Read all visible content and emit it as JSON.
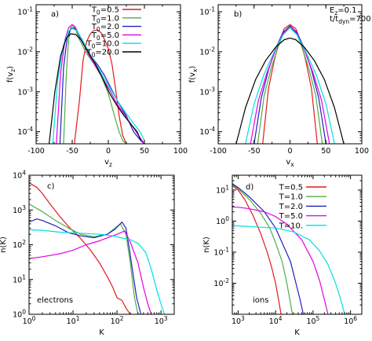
{
  "chart_data": [
    {
      "panel": "a)",
      "type": "line",
      "xlabel": "v_z",
      "ylabel": "f(v_z)",
      "xscale": "linear",
      "yscale": "log",
      "xlim": [
        -100,
        100
      ],
      "ylim": [
        5e-05,
        0.15
      ],
      "xticks": [
        -100,
        -50,
        0,
        50,
        100
      ],
      "xtick_labels": [
        "-100",
        "-50",
        "0",
        "50",
        "100"
      ],
      "yticks": [
        0.0001,
        0.001,
        0.01,
        0.1
      ],
      "ytick_labels": [
        "10-4",
        "10-3",
        "10-2",
        "10-1"
      ],
      "legend_position": "top-right",
      "series": [
        {
          "name": "T0=0.5",
          "color": "#e41a1c",
          "x": [
            -47,
            -40,
            -35,
            -30,
            -25,
            -20,
            -15,
            -10,
            -5,
            0,
            5,
            10,
            15,
            20,
            25
          ],
          "y": [
            5e-05,
            0.0006,
            0.006,
            0.018,
            0.028,
            0.034,
            0.035,
            0.03,
            0.02,
            0.012,
            0.005,
            0.0012,
            0.00025,
            8e-05,
            5e-05
          ]
        },
        {
          "name": "T0=1.0",
          "color": "#4daf4a",
          "x": [
            -62,
            -58,
            -55,
            -52,
            -49,
            -46,
            -40,
            -30,
            -20,
            -10,
            0,
            10,
            15,
            20,
            25
          ],
          "y": [
            5e-05,
            0.003,
            0.02,
            0.04,
            0.046,
            0.04,
            0.02,
            0.009,
            0.005,
            0.0025,
            0.0009,
            0.0002,
            0.0001,
            6e-05,
            5e-05
          ]
        },
        {
          "name": "T0=2.0",
          "color": "#2020c0",
          "x": [
            -67,
            -62,
            -57,
            -52,
            -48,
            -44,
            -35,
            -25,
            -15,
            -5,
            5,
            15,
            25,
            35,
            45,
            50
          ],
          "y": [
            5e-05,
            0.004,
            0.022,
            0.038,
            0.04,
            0.034,
            0.016,
            0.008,
            0.0048,
            0.0025,
            0.0011,
            0.0005,
            0.00025,
            0.0001,
            6e-05,
            5e-05
          ]
        },
        {
          "name": "T0=5.0",
          "color": "#e600e6",
          "x": [
            -72,
            -66,
            -60,
            -55,
            -50,
            -46,
            -38,
            -28,
            -18,
            -8,
            2,
            12,
            22,
            32,
            42,
            50
          ],
          "y": [
            5e-05,
            0.003,
            0.02,
            0.04,
            0.048,
            0.042,
            0.022,
            0.009,
            0.0045,
            0.0022,
            0.0011,
            0.0005,
            0.00028,
            0.00015,
            8e-05,
            5e-05
          ]
        },
        {
          "name": "T0=10.0",
          "color": "#00e0e0",
          "x": [
            -77,
            -70,
            -62,
            -55,
            -50,
            -44,
            -36,
            -26,
            -16,
            -6,
            4,
            14,
            24,
            34,
            44,
            50
          ],
          "y": [
            5e-05,
            0.002,
            0.015,
            0.033,
            0.038,
            0.034,
            0.02,
            0.009,
            0.0045,
            0.0022,
            0.0011,
            0.00055,
            0.0003,
            0.00017,
            0.0001,
            6e-05
          ]
        },
        {
          "name": "T0=20.0",
          "color": "#000000",
          "x": [
            -82,
            -74,
            -66,
            -58,
            -52,
            -45,
            -38,
            -28,
            -18,
            -8,
            2,
            12,
            22,
            32,
            40,
            45
          ],
          "y": [
            5e-05,
            0.001,
            0.008,
            0.022,
            0.028,
            0.027,
            0.02,
            0.01,
            0.005,
            0.0022,
            0.0009,
            0.00045,
            0.00025,
            0.00015,
            0.0001,
            6e-05
          ]
        }
      ]
    },
    {
      "panel": "b)",
      "type": "line",
      "xlabel": "v_x",
      "ylabel": "f(v_x)",
      "xscale": "linear",
      "yscale": "log",
      "xlim": [
        -100,
        100
      ],
      "ylim": [
        5e-05,
        0.15
      ],
      "xticks": [
        -100,
        -50,
        0,
        50,
        100
      ],
      "xtick_labels": [
        "-100",
        "-50",
        "0",
        "50",
        "100"
      ],
      "yticks": [
        0.0001,
        0.001,
        0.01,
        0.1
      ],
      "ytick_labels": [
        "10-4",
        "10-3",
        "10-2",
        "10-1"
      ],
      "annotation": [
        "Ez=0.1",
        "t/tdyn=700"
      ],
      "series": [
        {
          "color": "#e41a1c",
          "x": [
            -38,
            -30,
            -22,
            -15,
            -8,
            0,
            8,
            15,
            22,
            30,
            38
          ],
          "y": [
            5e-05,
            0.0012,
            0.006,
            0.018,
            0.038,
            0.048,
            0.038,
            0.018,
            0.006,
            0.0012,
            5e-05
          ]
        },
        {
          "color": "#4daf4a",
          "x": [
            -45,
            -36,
            -26,
            -16,
            -8,
            0,
            8,
            16,
            26,
            36,
            45
          ],
          "y": [
            5e-05,
            0.0008,
            0.004,
            0.014,
            0.032,
            0.045,
            0.032,
            0.014,
            0.004,
            0.0008,
            5e-05
          ]
        },
        {
          "color": "#2020c0",
          "x": [
            -50,
            -40,
            -30,
            -20,
            -10,
            0,
            10,
            20,
            30,
            40,
            50
          ],
          "y": [
            5e-05,
            0.0007,
            0.0035,
            0.012,
            0.03,
            0.044,
            0.03,
            0.012,
            0.0035,
            0.0007,
            5e-05
          ]
        },
        {
          "color": "#e600e6",
          "x": [
            -55,
            -44,
            -32,
            -20,
            -10,
            0,
            10,
            20,
            32,
            44,
            55
          ],
          "y": [
            5e-05,
            0.0006,
            0.003,
            0.011,
            0.028,
            0.042,
            0.028,
            0.011,
            0.003,
            0.0006,
            5e-05
          ]
        },
        {
          "color": "#00e0e0",
          "x": [
            -62,
            -50,
            -36,
            -22,
            -10,
            0,
            10,
            22,
            36,
            50,
            62
          ],
          "y": [
            5e-05,
            0.0005,
            0.0028,
            0.01,
            0.026,
            0.04,
            0.026,
            0.01,
            0.0028,
            0.0005,
            5e-05
          ]
        },
        {
          "color": "#000000",
          "x": [
            -75,
            -62,
            -48,
            -34,
            -20,
            -8,
            0,
            8,
            20,
            34,
            48,
            62,
            75
          ],
          "y": [
            5e-05,
            0.0004,
            0.002,
            0.006,
            0.013,
            0.02,
            0.022,
            0.02,
            0.013,
            0.006,
            0.002,
            0.0004,
            5e-05
          ]
        }
      ]
    },
    {
      "panel": "c)",
      "type": "line",
      "xlabel": "K",
      "ylabel": "n(K)",
      "xscale": "log",
      "yscale": "log",
      "xlim": [
        1,
        2000
      ],
      "ylim": [
        1,
        10000
      ],
      "xticks": [
        1,
        10,
        100,
        1000
      ],
      "xtick_labels": [
        "10^0",
        "10^1",
        "10^2",
        "10^3"
      ],
      "yticks": [
        1,
        10,
        100,
        1000,
        10000
      ],
      "ytick_labels": [
        "10^0",
        "10^1",
        "10^2",
        "10^3",
        "10^4"
      ],
      "annotation": "electrons",
      "series": [
        {
          "color": "#e41a1c",
          "x": [
            1,
            1.5,
            2,
            3,
            5,
            8,
            15,
            25,
            40,
            60,
            80,
            100,
            130,
            160,
            200
          ],
          "y": [
            6000,
            4500,
            3000,
            1500,
            650,
            330,
            150,
            70,
            30,
            12,
            6,
            3,
            2.5,
            1.5,
            1
          ]
        },
        {
          "color": "#4daf4a",
          "x": [
            1,
            2,
            4,
            8,
            15,
            30,
            60,
            90,
            120,
            160,
            200,
            250,
            300
          ],
          "y": [
            1500,
            900,
            500,
            300,
            200,
            170,
            200,
            300,
            400,
            200,
            30,
            3,
            1
          ]
        },
        {
          "color": "#2020c0",
          "x": [
            1,
            1.5,
            2,
            4,
            8,
            15,
            30,
            60,
            90,
            130,
            160,
            190,
            230,
            280,
            350
          ],
          "y": [
            450,
            550,
            500,
            350,
            220,
            180,
            160,
            200,
            280,
            450,
            300,
            80,
            15,
            3,
            1
          ]
        },
        {
          "color": "#e600e6",
          "x": [
            1,
            2,
            5,
            10,
            20,
            40,
            70,
            100,
            150,
            200,
            300,
            400,
            500,
            600
          ],
          "y": [
            40,
            45,
            55,
            70,
            100,
            130,
            170,
            200,
            250,
            120,
            30,
            6,
            2,
            1
          ]
        },
        {
          "color": "#00e0e0",
          "x": [
            1,
            2,
            5,
            10,
            20,
            40,
            80,
            120,
            200,
            300,
            450,
            600,
            800,
            1000,
            1200
          ],
          "y": [
            270,
            260,
            230,
            220,
            210,
            200,
            180,
            160,
            140,
            110,
            60,
            20,
            5,
            2,
            1
          ]
        }
      ]
    },
    {
      "panel": "d)",
      "type": "line",
      "xlabel": "K",
      "ylabel": "n(K)",
      "xscale": "log",
      "yscale": "log",
      "xlim": [
        700,
        2000000
      ],
      "ylim": [
        0.001,
        30
      ],
      "xticks": [
        1000,
        10000,
        100000,
        1000000
      ],
      "xtick_labels": [
        "10^3",
        "10^4",
        "10^5",
        "10^6"
      ],
      "yticks": [
        0.01,
        0.1,
        1,
        10
      ],
      "ytick_labels": [
        "10^-2",
        "10^-1",
        "10^0",
        "10^1"
      ],
      "annotation": "ions",
      "legend_position": "top-right",
      "series": [
        {
          "name": "T=0.5",
          "color": "#e41a1c",
          "x": [
            700,
            1000,
            1500,
            2500,
            4000,
            6000,
            8000,
            10000,
            12000,
            14000
          ],
          "y": [
            14,
            10,
            5,
            1.5,
            0.4,
            0.1,
            0.03,
            0.01,
            0.003,
            0.001
          ]
        },
        {
          "name": "T=1.0",
          "color": "#4daf4a",
          "x": [
            700,
            1000,
            2000,
            4000,
            7000,
            10000,
            15000,
            20000,
            24000,
            28000
          ],
          "y": [
            15,
            11,
            5,
            1.8,
            0.6,
            0.2,
            0.05,
            0.01,
            0.003,
            0.001
          ]
        },
        {
          "name": "T=2.0",
          "color": "#2020c0",
          "x": [
            700,
            1000,
            2000,
            5000,
            10000,
            15000,
            25000,
            35000,
            45000,
            55000
          ],
          "y": [
            16,
            12,
            6,
            2,
            0.6,
            0.2,
            0.05,
            0.01,
            0.003,
            0.001
          ]
        },
        {
          "name": "T=5.0",
          "color": "#e600e6",
          "x": [
            700,
            1000,
            2000,
            5000,
            10000,
            20000,
            50000,
            100000,
            150000,
            200000,
            250000
          ],
          "y": [
            2.8,
            2.8,
            2.5,
            2,
            1.4,
            0.8,
            0.25,
            0.05,
            0.012,
            0.003,
            0.001
          ]
        },
        {
          "name": "T=10.",
          "color": "#00e0e0",
          "x": [
            700,
            1000,
            3000,
            10000,
            30000,
            80000,
            150000,
            250000,
            400000,
            550000,
            700000
          ],
          "y": [
            0.7,
            0.7,
            0.65,
            0.6,
            0.45,
            0.25,
            0.11,
            0.04,
            0.01,
            0.003,
            0.001
          ]
        }
      ]
    }
  ]
}
